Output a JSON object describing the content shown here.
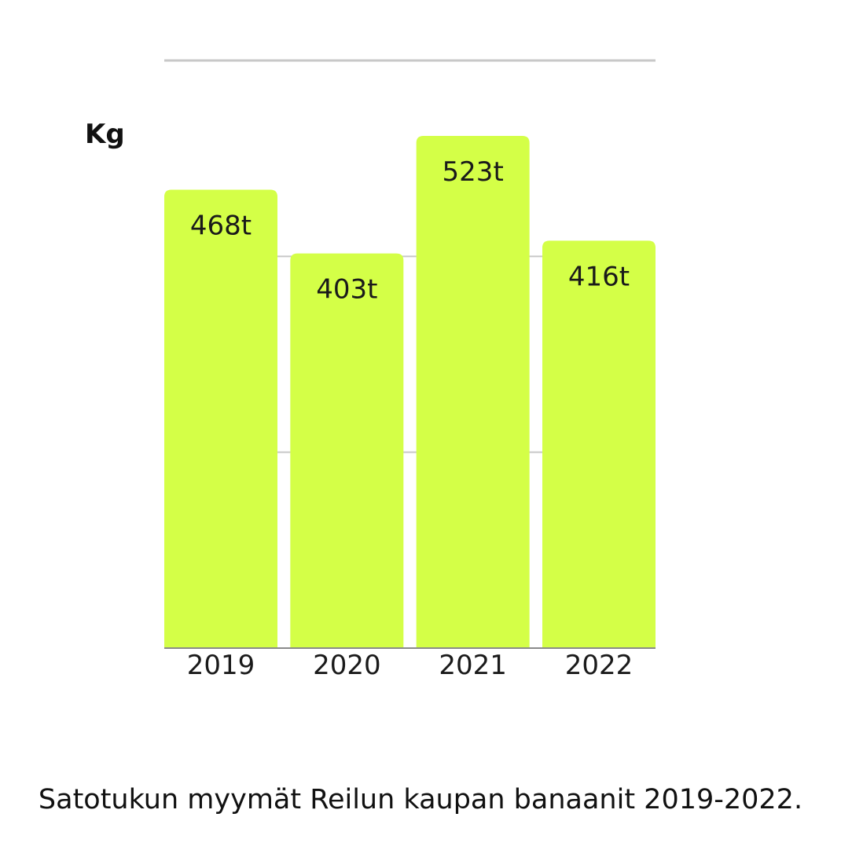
{
  "chart_data": {
    "type": "bar",
    "categories": [
      "2019",
      "2020",
      "2021",
      "2022"
    ],
    "values": [
      468,
      403,
      523,
      416
    ],
    "data_labels": [
      "468t",
      "403t",
      "523t",
      "416t"
    ],
    "ylabel": "Kg",
    "xlabel": "",
    "ylim": [
      0,
      600
    ],
    "gridlines": [
      0,
      200,
      400,
      600
    ],
    "grid": true,
    "bar_color": "#d4ff47",
    "grid_color": "#c8c8c8",
    "caption": "Satotukun myymät Reilun kaupan banaanit 2019-2022."
  }
}
